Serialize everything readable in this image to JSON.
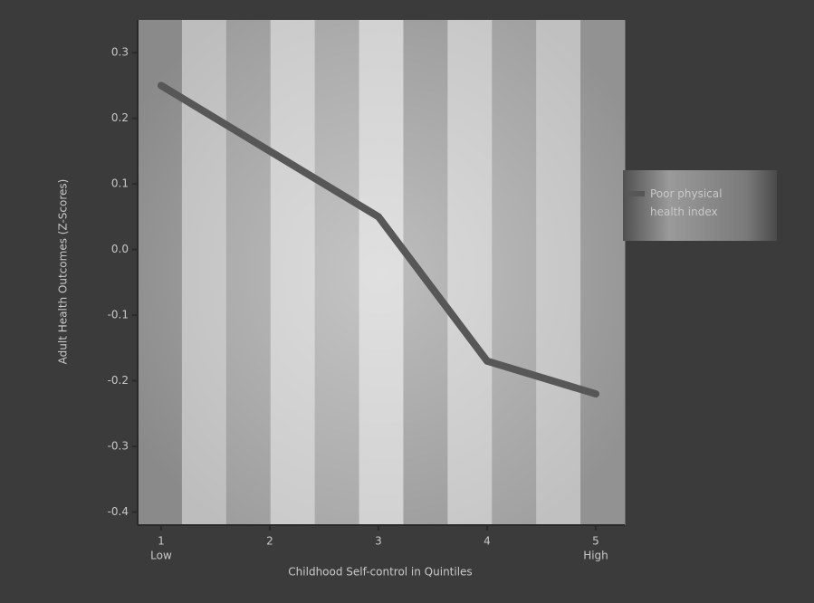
{
  "chart_data": {
    "type": "line",
    "y_label": "Adult Health Outcomes (Z-Scores)",
    "x_label": "Childhood Self-control in Quintiles",
    "categories": [
      "1",
      "2",
      "3",
      "4",
      "5"
    ],
    "category_notes": [
      "Low",
      null,
      null,
      null,
      "High"
    ],
    "series": [
      {
        "name": "Poor physical health index",
        "color": "#575757",
        "values": [
          0.25,
          0.15,
          0.05,
          -0.17,
          -0.22
        ]
      }
    ],
    "ylim": [
      -0.42,
      0.35
    ],
    "yticks": [
      -0.4,
      -0.3,
      -0.2,
      -0.1,
      {
        "value": 0,
        "label": "0.0"
      },
      0.1,
      0.2,
      0.3
    ],
    "grid": false
  }
}
